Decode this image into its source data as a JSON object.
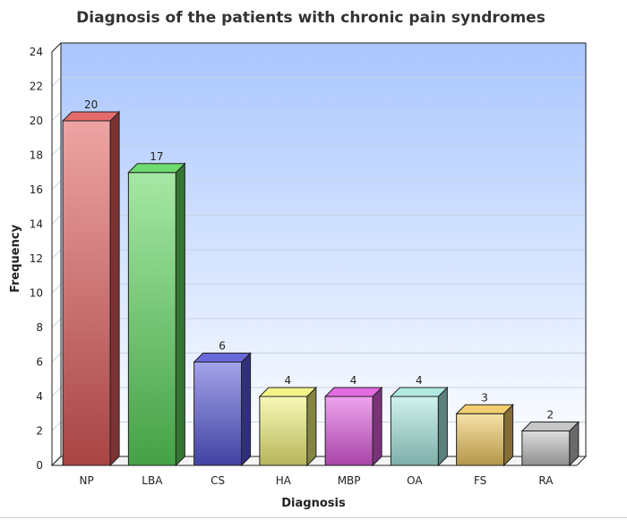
{
  "chart_data": {
    "type": "bar",
    "title": "Diagnosis of the patients with chronic pain syndromes",
    "xlabel": "Diagnosis",
    "ylabel": "Frequency",
    "ylim": [
      0,
      24
    ],
    "ytick_step": 2,
    "yticks": [
      "0",
      "2",
      "4",
      "6",
      "8",
      "10",
      "12",
      "14",
      "16",
      "18",
      "20",
      "22",
      "24"
    ],
    "grid": true,
    "legend": "none",
    "categories": [
      "NP",
      "LBA",
      "CS",
      "HA",
      "MBP",
      "OA",
      "FS",
      "RA"
    ],
    "values": [
      20,
      17,
      6,
      4,
      4,
      4,
      3,
      2
    ],
    "data_labels": [
      "20",
      "17",
      "6",
      "4",
      "4",
      "4",
      "3",
      "2"
    ],
    "colors": [
      "#e05a5a",
      "#5cd65c",
      "#5858d8",
      "#f2f27a",
      "#e05ae0",
      "#a8e8e0",
      "#f0c860",
      "#c0c0c0"
    ]
  }
}
